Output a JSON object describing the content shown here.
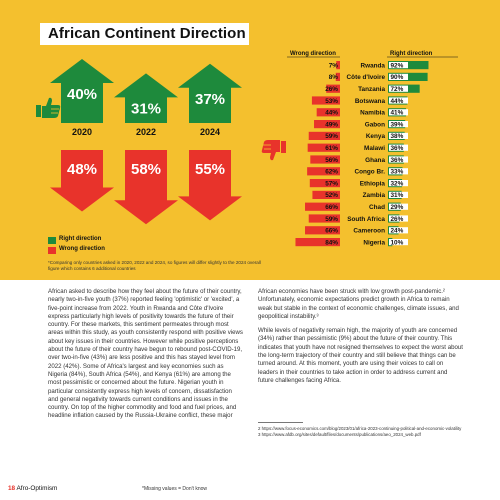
{
  "title": "African Continent Direction",
  "colors": {
    "right": "#1e8a3c",
    "wrong": "#e8332b",
    "background": "#f4c02e"
  },
  "icons": {
    "thumbs_up": "thumbs-up-icon",
    "thumbs_down": "thumbs-down-icon"
  },
  "legend": {
    "right": "Right direction",
    "wrong": "Wrong direction"
  },
  "footnote_chart": "*Comparing only countries asked in 2020, 2022 and 2024, so figures will differ slightly to the 2024 overall figure which contains 6 additional countries",
  "chart_data": [
    {
      "type": "bar",
      "categories": [
        "2020",
        "2022",
        "2024"
      ],
      "series": [
        {
          "name": "Right direction",
          "values": [
            40,
            31,
            37
          ]
        },
        {
          "name": "Wrong direction",
          "values": [
            48,
            58,
            55
          ]
        }
      ]
    },
    {
      "type": "bar",
      "table_headers": {
        "wrong": "Wrong direction",
        "right": "Right direction"
      },
      "categories": [
        "Rwanda",
        "Côte d'Ivoire",
        "Tanzania",
        "Botswana",
        "Namibia",
        "Gabon",
        "Kenya",
        "Malawi",
        "Ghana",
        "Congo Br.",
        "Ethiopia",
        "Zambia",
        "Chad",
        "South Africa",
        "Cameroon",
        "Nigeria"
      ],
      "series": [
        {
          "name": "Wrong direction",
          "values": [
            7,
            8,
            26,
            53,
            44,
            49,
            59,
            61,
            56,
            62,
            57,
            52,
            66,
            59,
            66,
            84
          ]
        },
        {
          "name": "Right direction",
          "values": [
            92,
            90,
            72,
            44,
            41,
            39,
            38,
            36,
            36,
            33,
            32,
            31,
            29,
            26,
            24,
            10
          ]
        }
      ]
    }
  ],
  "body_left": [
    "African asked to describe how they feel about the future of their country, nearly two-in-five youth (37%) reported feeling 'optimistic' or 'excited', a five-point increase from 2022. Youth in Rwanda and Côte d'Ivoire express particularly high levels of positivity towards the future of their country. For these markets, this sentiment permeates through most areas within this study, as youth consistently respond with positive views about key issues in their countries. However while positive perceptions about the future of their country have begun to rebound post-COVID-19, over two-in-five (43%) are less positive and this has stayed level from 2022 (42%). Some of Africa's largest and key economies such as Nigeria (84%), South Africa (54%), and Kenya (61%) are among the most pessimistic or concerned about the future. Nigerian youth in particular consistently express high levels of concern, dissatisfaction and general negativity towards current conditions and issues in the country. On top of the higher commodity and food and fuel prices, and headline inflation caused by the Russia-Ukraine conflict, these major"
  ],
  "body_right": [
    "African economies have been struck with low growth post-pandemic.² Unfortunately, economic expectations predict growth in Africa to remain weak but stable in the context of economic challenges, climate issues, and geopolitical instability.³",
    "While levels of negativity remain high, the majority of youth are concerned (34%) rather than pessimistic (9%) about the future of their country. This indicates that youth have not resigned themselves to expect the worst about the long-term trajectory of their country and still believe that things can be turned around. At this moment, youth are using their voices to call on leaders in their countries to take action in order to address current and future challenges facing Africa."
  ],
  "footnotes": [
    "2 https://www.focus-economics.com/blog/2023/01/africa-2023-continuing-political-and-economic-volatility",
    "3 https://www.afdb.org/sites/default/files/documents/publications/aeo_2024_web.pdf"
  ],
  "page": {
    "number": "18",
    "section": "Afro-Optimism"
  },
  "missing_note": "*Missing values = Don't know"
}
